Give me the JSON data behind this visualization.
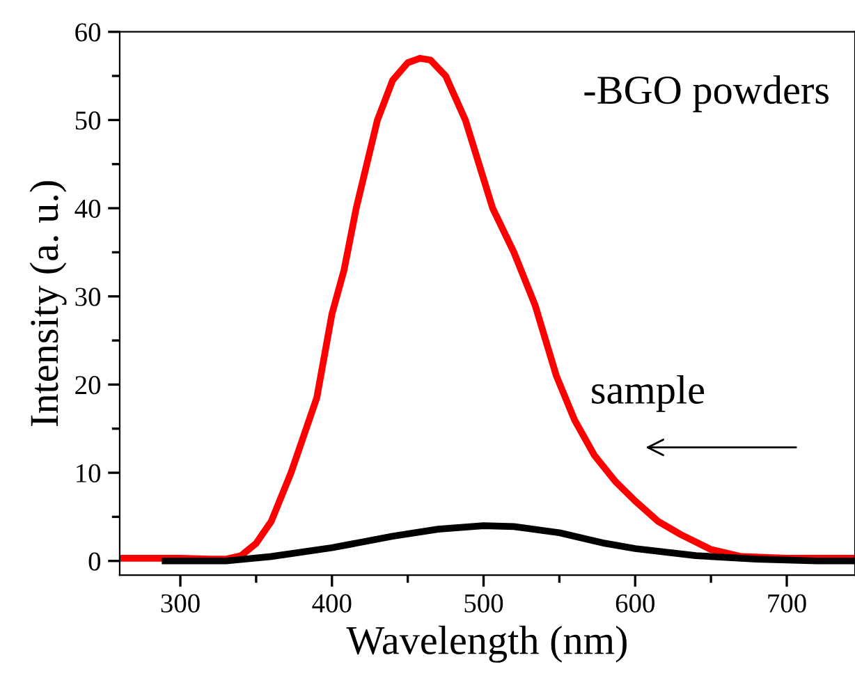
{
  "chart_data": {
    "type": "line",
    "xlabel": "Wavelength (nm)",
    "ylabel": "Intensity (a. u.)",
    "annotations": [
      "-BGO powders",
      "sample"
    ],
    "series": [
      {
        "color": "#ff0000",
        "x": [
          260,
          300,
          320,
          330,
          340,
          350,
          360,
          373,
          380,
          390,
          400,
          408,
          416,
          423,
          430,
          440,
          450,
          458,
          465,
          475,
          488,
          497,
          506,
          520,
          534,
          541,
          548,
          560,
          573,
          587,
          600,
          615,
          630,
          650,
          670,
          700,
          745
        ],
        "values": [
          0.3,
          0.3,
          0.2,
          0.2,
          0.6,
          2,
          4.5,
          10,
          13.5,
          18.5,
          28,
          33,
          40,
          45,
          50,
          54.5,
          56.5,
          57,
          56.8,
          55,
          50,
          45,
          40,
          35,
          29,
          25,
          21,
          16,
          12,
          9,
          6.8,
          4.5,
          3,
          1.3,
          0.5,
          0.3,
          0.3
        ]
      },
      {
        "color": "#000000",
        "x": [
          290,
          330,
          360,
          400,
          440,
          470,
          500,
          520,
          550,
          580,
          600,
          640,
          680,
          720,
          745
        ],
        "values": [
          0,
          0,
          0.5,
          1.5,
          2.8,
          3.6,
          4,
          3.9,
          3.2,
          2,
          1.4,
          0.6,
          0.2,
          0,
          0
        ]
      }
    ],
    "xlim": [
      260,
      745
    ],
    "xticks": [
      300,
      400,
      500,
      600,
      700
    ],
    "ylim": [
      -1.6,
      60
    ],
    "yticks": [
      0,
      10,
      20,
      30,
      40,
      50,
      60
    ],
    "grid": false,
    "legend": false,
    "marker": "none",
    "line_style": "solid"
  }
}
